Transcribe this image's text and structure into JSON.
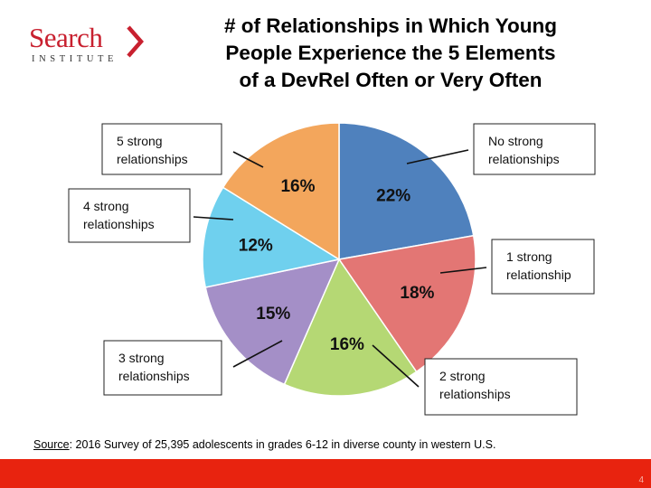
{
  "logo": {
    "word": "Search",
    "sub": "INSTITUTE"
  },
  "title": "# of Relationships in Which Young\nPeople Experience the 5 Elements\nof a DevRel Often or Very Often",
  "source": {
    "label": "Source",
    "text": ":  2016 Survey of 25,395 adolescents in grades 6-12 in diverse county in western U.S."
  },
  "page_number": "4",
  "colors": {
    "footer": "#e8230f",
    "brand": "#c8202f"
  },
  "chart_data": {
    "type": "pie",
    "unit": "%",
    "slices": [
      {
        "label": "No strong relationships",
        "callout": [
          "No strong",
          "relationships"
        ],
        "value": 22,
        "color": "#4f81bd"
      },
      {
        "label": "1 strong relationship",
        "callout": [
          "1 strong",
          "relationship"
        ],
        "value": 18,
        "color": "#e37674"
      },
      {
        "label": "2 strong relationships",
        "callout": [
          "2 strong",
          "relationships"
        ],
        "value": 16,
        "color": "#b5d874"
      },
      {
        "label": "3 strong relationships",
        "callout": [
          "3 strong",
          "relationships"
        ],
        "value": 15,
        "color": "#a48fc7"
      },
      {
        "label": "4 strong relationships",
        "callout": [
          "4 strong",
          "relationships"
        ],
        "value": 12,
        "color": "#6fd0ee"
      },
      {
        "label": "5 strong relationships",
        "callout": [
          "5 strong",
          "relationships"
        ],
        "value": 16,
        "color": "#f3a65c"
      }
    ]
  }
}
